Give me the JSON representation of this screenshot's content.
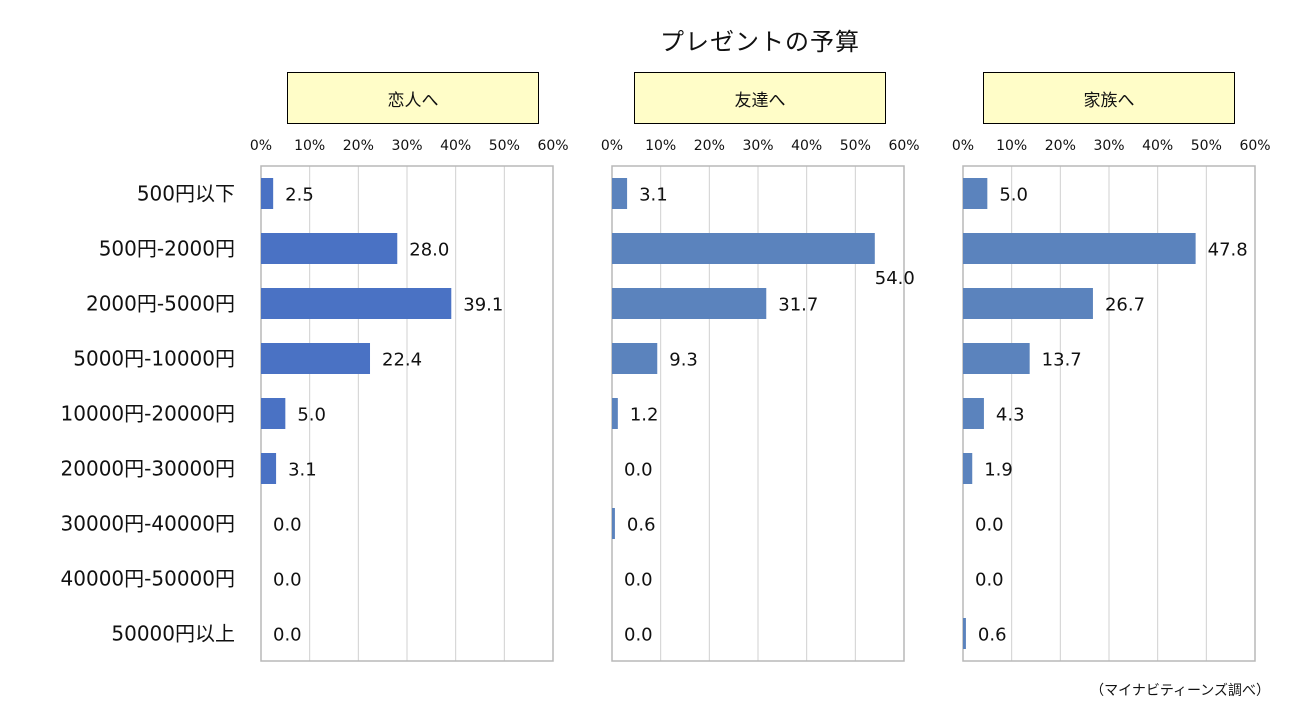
{
  "chart_data": {
    "type": "bar",
    "title": "プレゼントの予算",
    "source": "（マイナビティーンズ調べ）",
    "categories": [
      "500円以下",
      "500円-2000円",
      "2000円-5000円",
      "5000円-10000円",
      "10000円-20000円",
      "20000円-30000円",
      "30000円-40000円",
      "40000円-50000円",
      "50000円以上"
    ],
    "xticks": [
      "0%",
      "10%",
      "20%",
      "30%",
      "40%",
      "50%",
      "60%"
    ],
    "xlim": [
      0,
      60
    ],
    "grid": true,
    "series": [
      {
        "name": "恋人へ",
        "color": "#4a72c4",
        "values": [
          2.5,
          28.0,
          39.1,
          22.4,
          5.0,
          3.1,
          0.0,
          0.0,
          0.0
        ],
        "labels": [
          "2.5",
          "28.0",
          "39.1",
          "22.4",
          "5.0",
          "3.1",
          "0.0",
          "0.0",
          "0.0"
        ]
      },
      {
        "name": "友達へ",
        "color": "#5b83bd",
        "values": [
          3.1,
          54.0,
          31.7,
          9.3,
          1.2,
          0.0,
          0.6,
          0.0,
          0.0
        ],
        "labels": [
          "3.1",
          "54.0",
          "31.7",
          "9.3",
          "1.2",
          "0.0",
          "0.6",
          "0.0",
          "0.0"
        ]
      },
      {
        "name": "家族へ",
        "color": "#5b83bd",
        "values": [
          5.0,
          47.8,
          26.7,
          13.7,
          4.3,
          1.9,
          0.0,
          0.0,
          0.6
        ],
        "labels": [
          "5.0",
          "47.8",
          "26.7",
          "13.7",
          "4.3",
          "1.9",
          "0.0",
          "0.0",
          "0.6"
        ]
      }
    ]
  }
}
